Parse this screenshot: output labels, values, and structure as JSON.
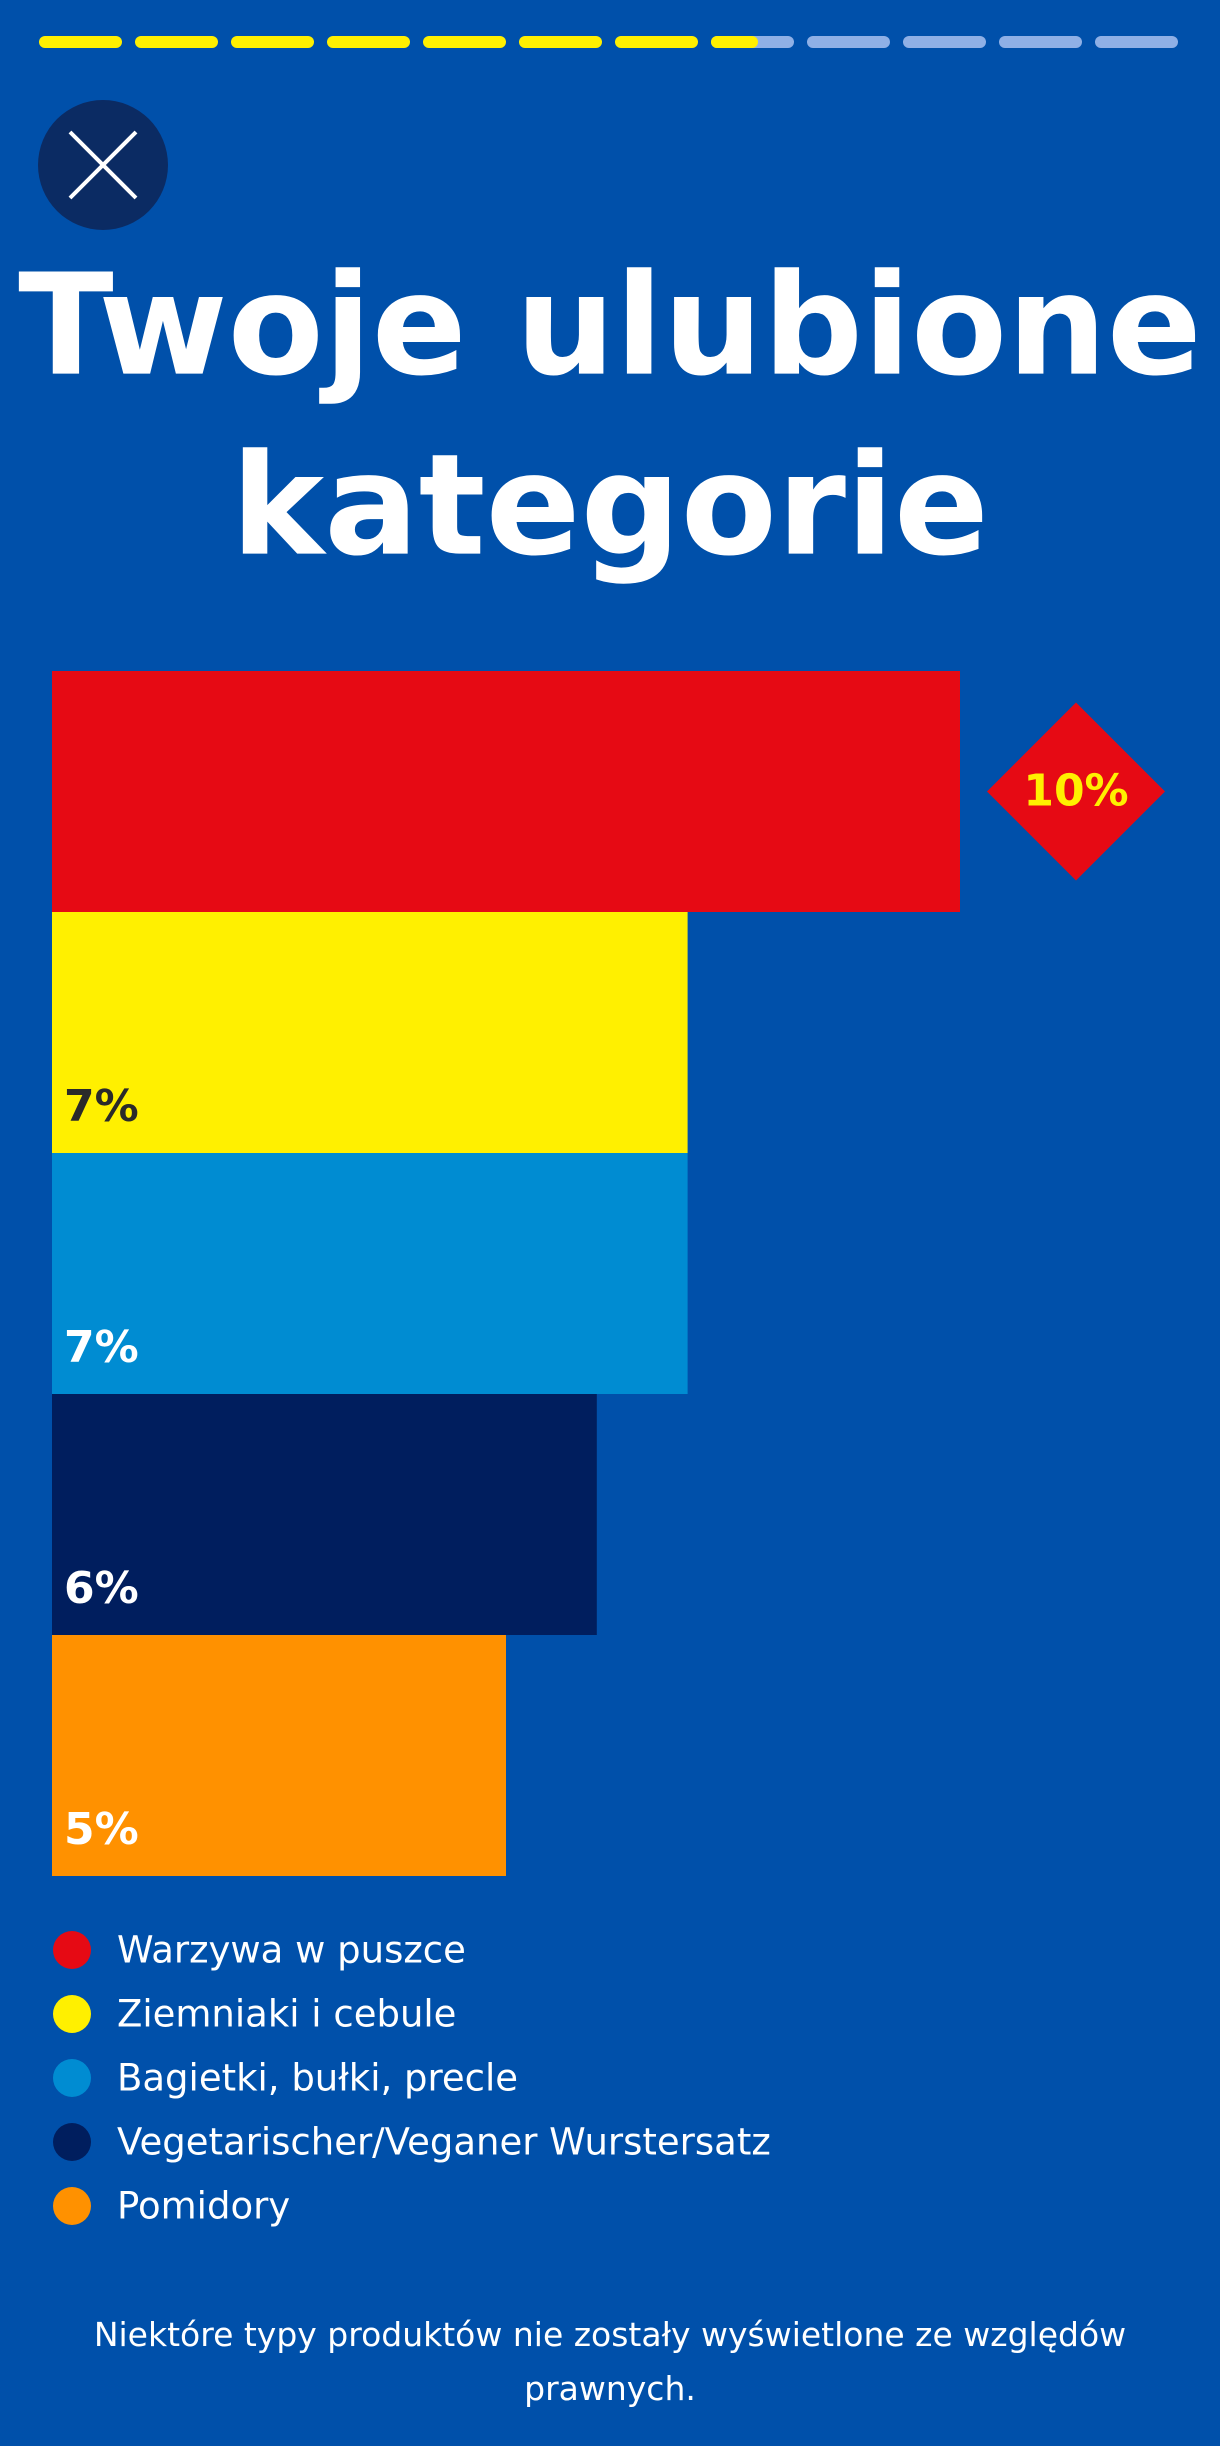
{
  "chart_data": {
    "type": "bar",
    "orientation": "horizontal",
    "title": "Twoje ulubione kategorie",
    "categories": [
      "Warzywa w puszce",
      "Ziemniaki i cebule",
      "Bagietki, bułki, precle",
      "Vegetarischer/Veganer Wurstersatz",
      "Pomidory"
    ],
    "values": [
      10,
      7,
      7,
      6,
      5
    ],
    "value_labels": [
      "10%",
      "7%",
      "7%",
      "6%",
      "5%"
    ],
    "colors": [
      "#e60a14",
      "#fff000",
      "#008cd2",
      "#001e5e",
      "#ff9100"
    ],
    "note": "Niektóre typy produktów nie zostały wyświetlone ze względów prawnych."
  }
}
